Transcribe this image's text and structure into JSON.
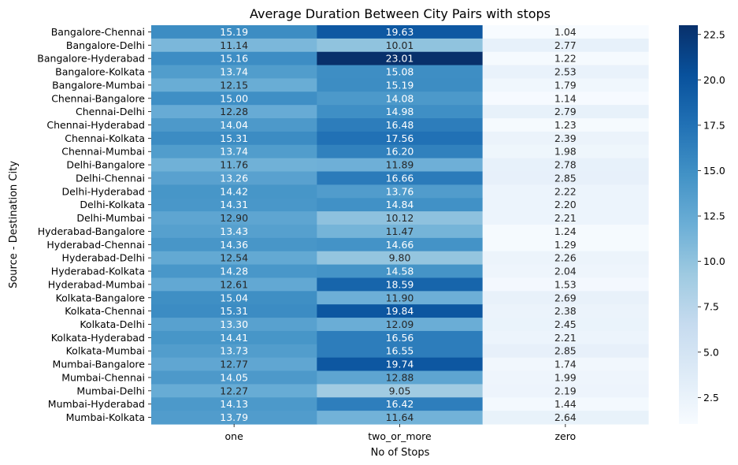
{
  "chart_data": {
    "type": "heatmap",
    "title": "Average Duration Between City Pairs with stops",
    "xlabel": "No of Stops",
    "ylabel": "Source - Destination City",
    "columns": [
      "one",
      "two_or_more",
      "zero"
    ],
    "rows": [
      "Bangalore-Chennai",
      "Bangalore-Delhi",
      "Bangalore-Hyderabad",
      "Bangalore-Kolkata",
      "Bangalore-Mumbai",
      "Chennai-Bangalore",
      "Chennai-Delhi",
      "Chennai-Hyderabad",
      "Chennai-Kolkata",
      "Chennai-Mumbai",
      "Delhi-Bangalore",
      "Delhi-Chennai",
      "Delhi-Hyderabad",
      "Delhi-Kolkata",
      "Delhi-Mumbai",
      "Hyderabad-Bangalore",
      "Hyderabad-Chennai",
      "Hyderabad-Delhi",
      "Hyderabad-Kolkata",
      "Hyderabad-Mumbai",
      "Kolkata-Bangalore",
      "Kolkata-Chennai",
      "Kolkata-Delhi",
      "Kolkata-Hyderabad",
      "Kolkata-Mumbai",
      "Mumbai-Bangalore",
      "Mumbai-Chennai",
      "Mumbai-Delhi",
      "Mumbai-Hyderabad",
      "Mumbai-Kolkata"
    ],
    "values": [
      [
        15.19,
        19.63,
        1.04
      ],
      [
        11.14,
        10.01,
        2.77
      ],
      [
        15.16,
        23.01,
        1.22
      ],
      [
        13.74,
        15.08,
        2.53
      ],
      [
        12.15,
        15.19,
        1.79
      ],
      [
        15.0,
        14.08,
        1.14
      ],
      [
        12.28,
        14.98,
        2.79
      ],
      [
        14.04,
        16.48,
        1.23
      ],
      [
        15.31,
        17.56,
        2.39
      ],
      [
        13.74,
        16.2,
        1.98
      ],
      [
        11.76,
        11.89,
        2.78
      ],
      [
        13.26,
        16.66,
        2.85
      ],
      [
        14.42,
        13.76,
        2.22
      ],
      [
        14.31,
        14.84,
        2.2
      ],
      [
        12.9,
        10.12,
        2.21
      ],
      [
        13.43,
        11.47,
        1.24
      ],
      [
        14.36,
        14.66,
        1.29
      ],
      [
        12.54,
        9.8,
        2.26
      ],
      [
        14.28,
        14.58,
        2.04
      ],
      [
        12.61,
        18.59,
        1.53
      ],
      [
        15.04,
        11.9,
        2.69
      ],
      [
        15.31,
        19.84,
        2.38
      ],
      [
        13.3,
        12.09,
        2.45
      ],
      [
        14.41,
        16.56,
        2.21
      ],
      [
        13.73,
        16.55,
        2.85
      ],
      [
        12.77,
        19.74,
        1.74
      ],
      [
        14.05,
        12.88,
        1.99
      ],
      [
        12.27,
        9.05,
        2.19
      ],
      [
        14.13,
        16.42,
        1.44
      ],
      [
        13.79,
        11.64,
        2.64
      ]
    ],
    "colormap": "Blues",
    "color_range": [
      1.04,
      23.01
    ],
    "colorbar_ticks": [
      2.5,
      5.0,
      7.5,
      10.0,
      12.5,
      15.0,
      17.5,
      20.0,
      22.5
    ],
    "colorbar_tick_labels": [
      "2.5",
      "5.0",
      "7.5",
      "10.0",
      "12.5",
      "15.0",
      "17.5",
      "20.0",
      "22.5"
    ],
    "annotation_format": "2 decimals",
    "grid": false
  }
}
